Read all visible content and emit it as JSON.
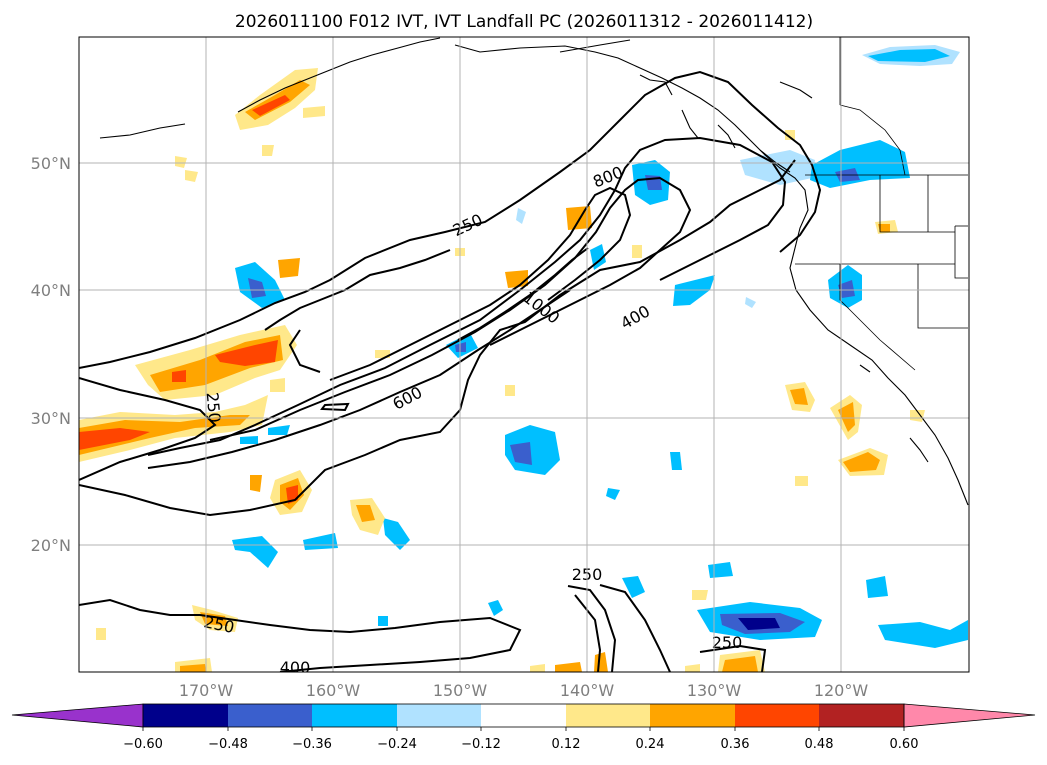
{
  "title": "2026011100 F012 IVT, IVT Landfall PC (2026011312 - 2026011412)",
  "x_ticks": [
    "170°W",
    "160°W",
    "150°W",
    "140°W",
    "130°W",
    "120°W"
  ],
  "y_ticks": [
    "50°N",
    "40°N",
    "30°N",
    "20°N"
  ],
  "contour_labels": [
    "250",
    "800",
    "1000",
    "400",
    "600",
    "250",
    "250",
    "250",
    "250",
    "400"
  ],
  "colorbar": {
    "ticks": [
      "−0.60",
      "−0.48",
      "−0.36",
      "−0.24",
      "−0.12",
      "0.12",
      "0.24",
      "0.36",
      "0.48",
      "0.60"
    ],
    "colors": [
      "#9932cc",
      "#00008b",
      "#3a5fcd",
      "#00bfff",
      "#b0e2ff",
      "#ffffff",
      "#ffe88a",
      "#ffa500",
      "#ff4500",
      "#b22222",
      "#ff88aa"
    ]
  }
}
